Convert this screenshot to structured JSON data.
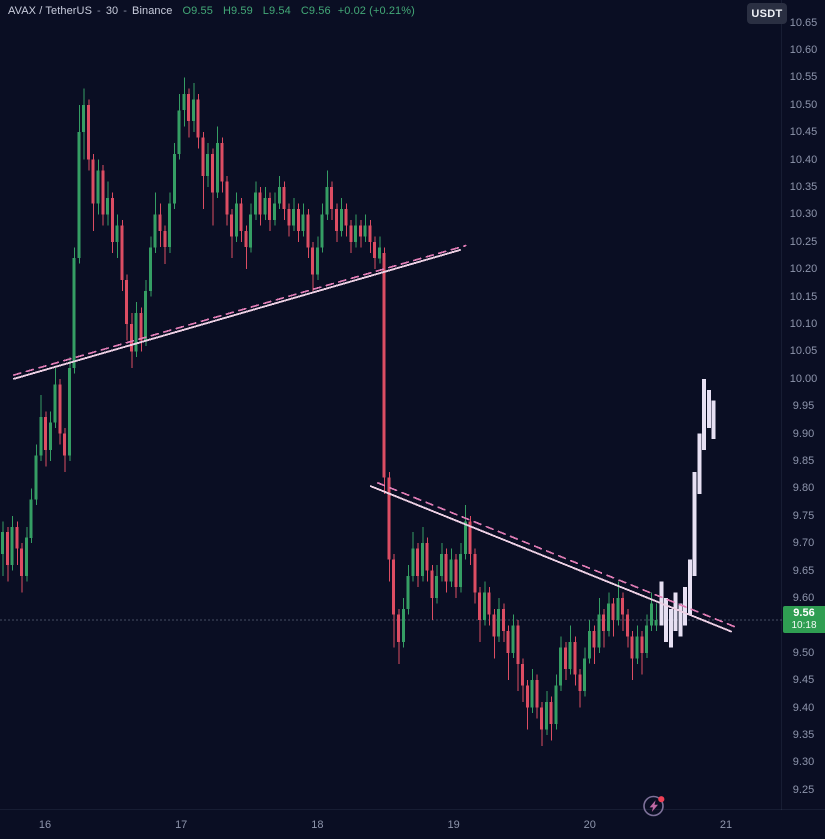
{
  "header": {
    "symbol": "AVAX / TetherUS",
    "separator": "-",
    "interval": "30",
    "exchange": "Binance",
    "ohlc": {
      "o": "O9.55",
      "h": "H9.59",
      "l": "L9.54",
      "c": "C9.56"
    },
    "change": "+0.02 (+0.21%)"
  },
  "top_right": {
    "currency_button": "USDT"
  },
  "price_axis": {
    "ticks": [
      "10.65",
      "10.60",
      "10.55",
      "10.50",
      "10.45",
      "10.40",
      "10.35",
      "10.30",
      "10.25",
      "10.20",
      "10.15",
      "10.10",
      "10.05",
      "10.00",
      "9.95",
      "9.90",
      "9.85",
      "9.80",
      "9.75",
      "9.70",
      "9.65",
      "9.60",
      "9.50",
      "9.45",
      "9.40",
      "9.35",
      "9.30",
      "9.25"
    ]
  },
  "price_badge": {
    "price": "9.56",
    "countdown": "10:18"
  },
  "time_axis": {
    "labels": [
      "16",
      "17",
      "18",
      "19",
      "20",
      "21"
    ]
  },
  "icons": {
    "replay_flash": "lightning-in-circle-with-red-dot"
  },
  "colors": {
    "background": "#0a0e23",
    "bull": "#359e64",
    "bear": "#dc4d63",
    "projection": "#e7e0f3",
    "trend_solid": "#eccfe3",
    "trend_dashed": "#df7cb4",
    "price_line": "#9aa4bd",
    "badge_green": "#2f9e52",
    "ohlc_green": "#43a877",
    "axis_text": "#8e95ac"
  },
  "chart_data": {
    "type": "candlestick",
    "title": "AVAX / TetherUS - 30 - Binance",
    "symbol": "AVAX/USDT",
    "interval": "30 minutes",
    "exchange": "Binance",
    "ohlc_readout": {
      "open": 9.55,
      "high": 9.59,
      "low": 9.54,
      "close": 9.56,
      "change": 0.02,
      "change_pct": 0.21
    },
    "last_price": 9.56,
    "bar_close_countdown": "10:18",
    "y_axis": {
      "min": 9.22,
      "max": 10.67,
      "tick_step": 0.05
    },
    "x_axis": {
      "day_labels": [
        16,
        17,
        18,
        19,
        20,
        21
      ]
    },
    "grid": "off",
    "candles": [
      [
        9.68,
        9.74,
        9.64,
        9.72
      ],
      [
        9.72,
        9.73,
        9.63,
        9.66
      ],
      [
        9.66,
        9.75,
        9.65,
        9.73
      ],
      [
        9.73,
        9.74,
        9.66,
        9.69
      ],
      [
        9.69,
        9.7,
        9.61,
        9.64
      ],
      [
        9.64,
        9.73,
        9.63,
        9.71
      ],
      [
        9.71,
        9.8,
        9.7,
        9.78
      ],
      [
        9.78,
        9.88,
        9.77,
        9.86
      ],
      [
        9.86,
        9.97,
        9.85,
        9.93
      ],
      [
        9.93,
        9.94,
        9.84,
        9.87
      ],
      [
        9.87,
        9.94,
        9.85,
        9.92
      ],
      [
        9.92,
        10.02,
        9.91,
        9.99
      ],
      [
        9.99,
        10.0,
        9.88,
        9.9
      ],
      [
        9.9,
        9.91,
        9.83,
        9.86
      ],
      [
        9.86,
        10.04,
        9.85,
        10.02
      ],
      [
        10.02,
        10.24,
        10.01,
        10.22
      ],
      [
        10.22,
        10.5,
        10.21,
        10.45
      ],
      [
        10.45,
        10.53,
        10.4,
        10.5
      ],
      [
        10.5,
        10.51,
        10.38,
        10.4
      ],
      [
        10.4,
        10.41,
        10.27,
        10.32
      ],
      [
        10.32,
        10.4,
        10.3,
        10.38
      ],
      [
        10.38,
        10.39,
        10.28,
        10.3
      ],
      [
        10.3,
        10.36,
        10.28,
        10.33
      ],
      [
        10.33,
        10.34,
        10.23,
        10.25
      ],
      [
        10.25,
        10.3,
        10.22,
        10.28
      ],
      [
        10.28,
        10.29,
        10.16,
        10.18
      ],
      [
        10.18,
        10.19,
        10.07,
        10.1
      ],
      [
        10.1,
        10.12,
        10.02,
        10.05
      ],
      [
        10.05,
        10.14,
        10.04,
        10.12
      ],
      [
        10.12,
        10.13,
        10.05,
        10.07
      ],
      [
        10.07,
        10.18,
        10.06,
        10.16
      ],
      [
        10.16,
        10.26,
        10.15,
        10.24
      ],
      [
        10.24,
        10.34,
        10.23,
        10.3
      ],
      [
        10.3,
        10.32,
        10.24,
        10.27
      ],
      [
        10.27,
        10.28,
        10.21,
        10.24
      ],
      [
        10.24,
        10.34,
        10.23,
        10.32
      ],
      [
        10.32,
        10.43,
        10.31,
        10.41
      ],
      [
        10.41,
        10.52,
        10.4,
        10.49
      ],
      [
        10.49,
        10.55,
        10.46,
        10.52
      ],
      [
        10.52,
        10.53,
        10.44,
        10.47
      ],
      [
        10.47,
        10.54,
        10.45,
        10.51
      ],
      [
        10.51,
        10.52,
        10.42,
        10.44
      ],
      [
        10.44,
        10.45,
        10.31,
        10.37
      ],
      [
        10.37,
        10.43,
        10.35,
        10.41
      ],
      [
        10.41,
        10.42,
        10.28,
        10.34
      ],
      [
        10.34,
        10.46,
        10.33,
        10.43
      ],
      [
        10.43,
        10.44,
        10.34,
        10.36
      ],
      [
        10.36,
        10.37,
        10.28,
        10.3
      ],
      [
        10.3,
        10.31,
        10.22,
        10.26
      ],
      [
        10.26,
        10.34,
        10.25,
        10.32
      ],
      [
        10.32,
        10.33,
        10.25,
        10.27
      ],
      [
        10.27,
        10.28,
        10.2,
        10.24
      ],
      [
        10.24,
        10.32,
        10.23,
        10.3
      ],
      [
        10.3,
        10.36,
        10.29,
        10.34
      ],
      [
        10.34,
        10.35,
        10.28,
        10.3
      ],
      [
        10.3,
        10.35,
        10.29,
        10.33
      ],
      [
        10.33,
        10.34,
        10.27,
        10.29
      ],
      [
        10.29,
        10.34,
        10.28,
        10.32
      ],
      [
        10.32,
        10.37,
        10.31,
        10.35
      ],
      [
        10.35,
        10.36,
        10.29,
        10.31
      ],
      [
        10.31,
        10.32,
        10.26,
        10.28
      ],
      [
        10.28,
        10.33,
        10.27,
        10.31
      ],
      [
        10.31,
        10.32,
        10.25,
        10.27
      ],
      [
        10.27,
        10.32,
        10.26,
        10.3
      ],
      [
        10.3,
        10.31,
        10.22,
        10.24
      ],
      [
        10.24,
        10.25,
        10.16,
        10.19
      ],
      [
        10.19,
        10.26,
        10.18,
        10.24
      ],
      [
        10.24,
        10.32,
        10.23,
        10.3
      ],
      [
        10.3,
        10.38,
        10.29,
        10.35
      ],
      [
        10.35,
        10.36,
        10.29,
        10.31
      ],
      [
        10.31,
        10.32,
        10.25,
        10.27
      ],
      [
        10.27,
        10.33,
        10.26,
        10.31
      ],
      [
        10.31,
        10.32,
        10.26,
        10.28
      ],
      [
        10.28,
        10.29,
        10.23,
        10.25
      ],
      [
        10.25,
        10.3,
        10.24,
        10.28
      ],
      [
        10.28,
        10.29,
        10.24,
        10.26
      ],
      [
        10.26,
        10.3,
        10.25,
        10.28
      ],
      [
        10.28,
        10.29,
        10.23,
        10.25
      ],
      [
        10.25,
        10.26,
        10.2,
        10.22
      ],
      [
        10.22,
        10.26,
        10.21,
        10.24
      ],
      [
        10.23,
        10.24,
        9.79,
        9.82
      ],
      [
        9.82,
        9.83,
        9.63,
        9.67
      ],
      [
        9.67,
        9.68,
        9.51,
        9.57
      ],
      [
        9.57,
        9.58,
        9.48,
        9.52
      ],
      [
        9.52,
        9.6,
        9.51,
        9.58
      ],
      [
        9.58,
        9.66,
        9.57,
        9.64
      ],
      [
        9.64,
        9.72,
        9.63,
        9.69
      ],
      [
        9.69,
        9.7,
        9.62,
        9.64
      ],
      [
        9.64,
        9.73,
        9.63,
        9.7
      ],
      [
        9.7,
        9.71,
        9.63,
        9.65
      ],
      [
        9.65,
        9.66,
        9.56,
        9.6
      ],
      [
        9.6,
        9.66,
        9.59,
        9.64
      ],
      [
        9.64,
        9.7,
        9.63,
        9.68
      ],
      [
        9.68,
        9.69,
        9.61,
        9.63
      ],
      [
        9.63,
        9.69,
        9.62,
        9.67
      ],
      [
        9.67,
        9.68,
        9.6,
        9.62
      ],
      [
        9.62,
        9.7,
        9.61,
        9.68
      ],
      [
        9.68,
        9.77,
        9.67,
        9.74
      ],
      [
        9.74,
        9.75,
        9.66,
        9.68
      ],
      [
        9.68,
        9.69,
        9.59,
        9.61
      ],
      [
        9.61,
        9.62,
        9.52,
        9.56
      ],
      [
        9.56,
        9.63,
        9.55,
        9.61
      ],
      [
        9.61,
        9.62,
        9.55,
        9.57
      ],
      [
        9.57,
        9.58,
        9.49,
        9.53
      ],
      [
        9.53,
        9.6,
        9.52,
        9.58
      ],
      [
        9.58,
        9.59,
        9.52,
        9.54
      ],
      [
        9.54,
        9.55,
        9.45,
        9.5
      ],
      [
        9.5,
        9.57,
        9.49,
        9.55
      ],
      [
        9.55,
        9.56,
        9.43,
        9.48
      ],
      [
        9.48,
        9.49,
        9.41,
        9.44
      ],
      [
        9.44,
        9.45,
        9.36,
        9.4
      ],
      [
        9.4,
        9.47,
        9.39,
        9.45
      ],
      [
        9.45,
        9.46,
        9.38,
        9.4
      ],
      [
        9.4,
        9.41,
        9.33,
        9.36
      ],
      [
        9.36,
        9.43,
        9.35,
        9.41
      ],
      [
        9.41,
        9.42,
        9.34,
        9.37
      ],
      [
        9.37,
        9.46,
        9.36,
        9.44
      ],
      [
        9.44,
        9.53,
        9.43,
        9.51
      ],
      [
        9.51,
        9.52,
        9.45,
        9.47
      ],
      [
        9.47,
        9.55,
        9.46,
        9.52
      ],
      [
        9.52,
        9.53,
        9.44,
        9.46
      ],
      [
        9.46,
        9.47,
        9.4,
        9.43
      ],
      [
        9.43,
        9.51,
        9.42,
        9.49
      ],
      [
        9.49,
        9.56,
        9.48,
        9.54
      ],
      [
        9.54,
        9.55,
        9.48,
        9.51
      ],
      [
        9.51,
        9.6,
        9.5,
        9.57
      ],
      [
        9.57,
        9.58,
        9.51,
        9.54
      ],
      [
        9.54,
        9.61,
        9.53,
        9.59
      ],
      [
        9.59,
        9.6,
        9.53,
        9.56
      ],
      [
        9.56,
        9.63,
        9.55,
        9.6
      ],
      [
        9.6,
        9.61,
        9.54,
        9.57
      ],
      [
        9.57,
        9.58,
        9.51,
        9.53
      ],
      [
        9.53,
        9.54,
        9.45,
        9.49
      ],
      [
        9.49,
        9.55,
        9.48,
        9.53
      ],
      [
        9.53,
        9.54,
        9.46,
        9.5
      ],
      [
        9.5,
        9.57,
        9.49,
        9.55
      ],
      [
        9.55,
        9.61,
        9.54,
        9.59
      ],
      [
        9.55,
        9.59,
        9.54,
        9.56
      ]
    ],
    "projection_start_index": 138,
    "projection_bars": [
      [
        9.55,
        9.63
      ],
      [
        9.52,
        9.6
      ],
      [
        9.51,
        9.58
      ],
      [
        9.54,
        9.61
      ],
      [
        9.53,
        9.59
      ],
      [
        9.55,
        9.62
      ],
      [
        9.57,
        9.67
      ],
      [
        9.64,
        9.83
      ],
      [
        9.79,
        9.9
      ],
      [
        9.87,
        10.0
      ],
      [
        9.91,
        9.98
      ],
      [
        9.89,
        9.96
      ]
    ],
    "trendlines": [
      {
        "name": "ascending-resistance-solid",
        "style": "solid",
        "from": {
          "index": 2.3,
          "price": 10.0
        },
        "to": {
          "index": 95.8,
          "price": 10.235
        }
      },
      {
        "name": "ascending-resistance-dashed",
        "style": "dashed",
        "from": {
          "index": 2.3,
          "price": 10.007
        },
        "to": {
          "index": 97.0,
          "price": 10.243
        }
      },
      {
        "name": "descending-resistance-solid",
        "style": "solid",
        "from": {
          "index": 77.1,
          "price": 9.804
        },
        "to": {
          "index": 152.6,
          "price": 9.539
        }
      },
      {
        "name": "descending-resistance-dashed",
        "style": "dashed",
        "from": {
          "index": 78.6,
          "price": 9.81
        },
        "to": {
          "index": 154.1,
          "price": 9.545
        }
      }
    ]
  }
}
